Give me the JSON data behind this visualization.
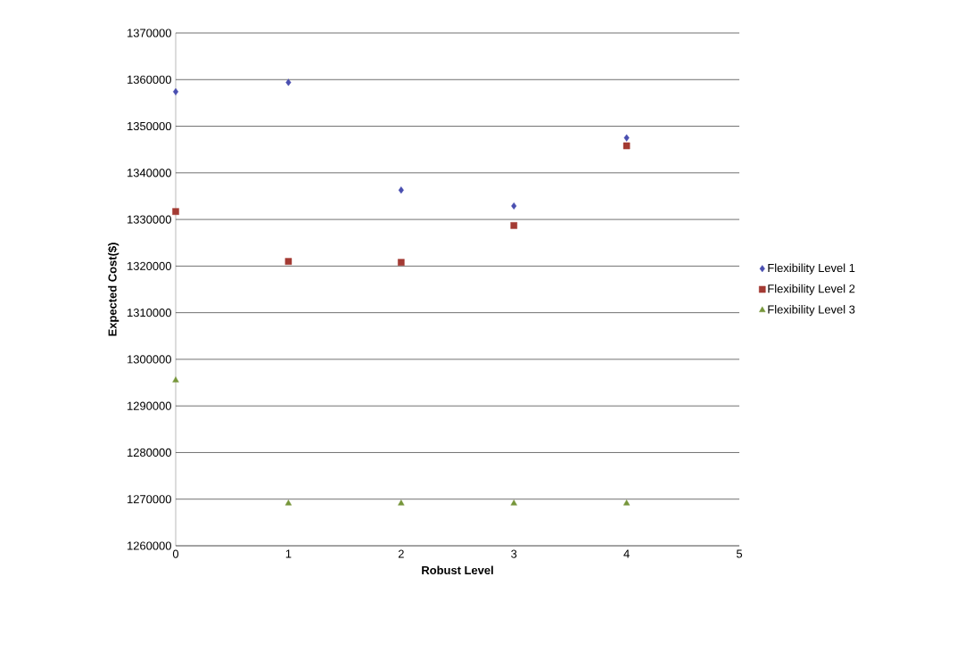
{
  "chart_data": {
    "type": "scatter",
    "xlabel": "Robust Level",
    "ylabel": "Expected Cost($)",
    "x": [
      0,
      1,
      2,
      3,
      4
    ],
    "series": [
      {
        "name": "Flexibility Level 1",
        "color": "#4a4fb0",
        "marker": "diamond",
        "values": [
          1357400,
          1359400,
          1336300,
          1332900,
          1347500
        ]
      },
      {
        "name": "Flexibility Level 2",
        "color": "#a33a33",
        "marker": "square",
        "values": [
          1331700,
          1321000,
          1320800,
          1328700,
          1345800
        ]
      },
      {
        "name": "Flexibility Level 3",
        "color": "#76963a",
        "marker": "triangle",
        "values": [
          1295500,
          1269100,
          1269100,
          1269100,
          1269100
        ]
      }
    ],
    "xlim": [
      0,
      5
    ],
    "xticks": [
      0,
      1,
      2,
      3,
      4,
      5
    ],
    "ylim": [
      1260000,
      1370000
    ],
    "yticks": [
      1260000,
      1270000,
      1280000,
      1290000,
      1300000,
      1310000,
      1320000,
      1330000,
      1340000,
      1350000,
      1360000,
      1370000
    ],
    "grid": "y",
    "legend": "right"
  }
}
